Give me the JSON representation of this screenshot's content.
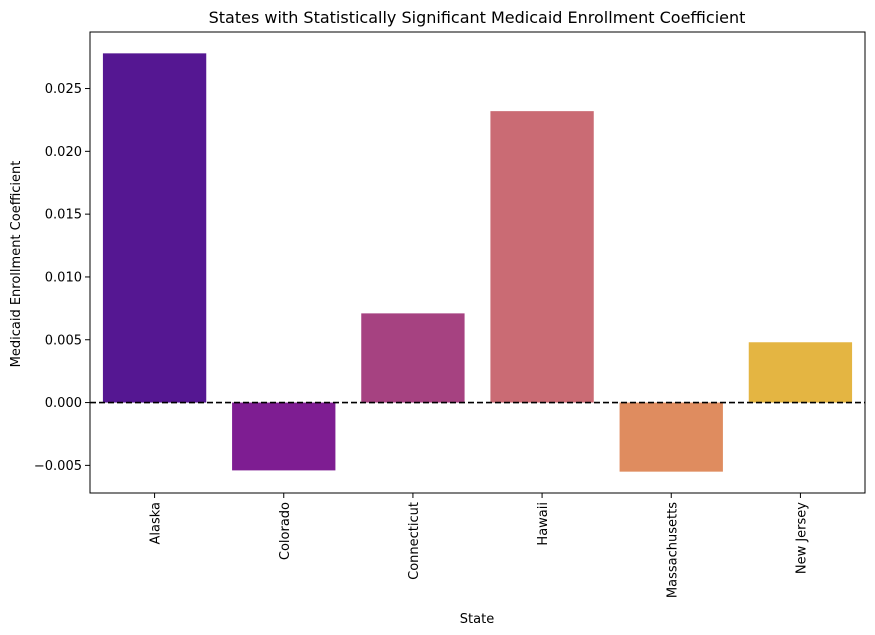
{
  "chart_data": {
    "type": "bar",
    "title": "States with Statistically Significant Medicaid Enrollment Coefficient",
    "xlabel": "State",
    "ylabel": "Medicaid Enrollment Coefficient",
    "categories": [
      "Alaska",
      "Colorado",
      "Connecticut",
      "Hawaii",
      "Massachusetts",
      "New Jersey"
    ],
    "values": [
      0.0278,
      -0.0054,
      0.0071,
      0.0232,
      -0.0055,
      0.0048
    ],
    "colors": [
      "#551792",
      "#7e1d92",
      "#a64281",
      "#ca6b74",
      "#df8c5f",
      "#e4b542"
    ],
    "ylim": [
      -0.0072,
      0.0295
    ],
    "yticks": [
      -0.005,
      0.0,
      0.005,
      0.01,
      0.015,
      0.02,
      0.025
    ],
    "ytick_labels": [
      "−0.005",
      "0.000",
      "0.005",
      "0.010",
      "0.015",
      "0.020",
      "0.025"
    ],
    "reference_line": {
      "y": 0.0,
      "style": "dashed",
      "color": "#000000"
    },
    "grid": false,
    "legend": "none"
  }
}
